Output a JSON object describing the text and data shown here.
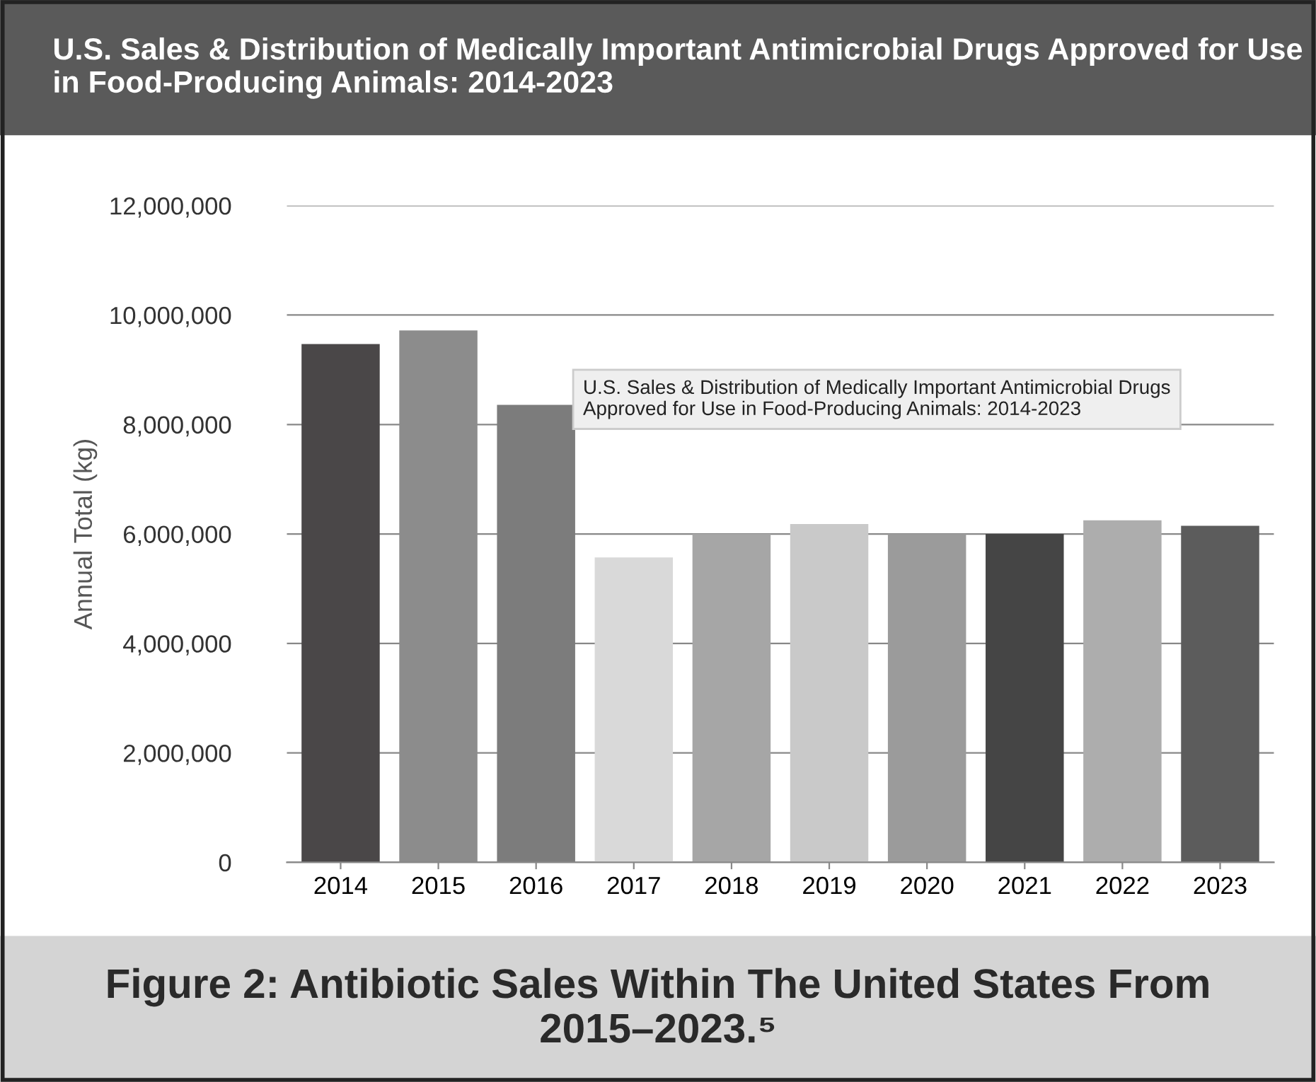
{
  "chart_data": {
    "type": "bar",
    "title": "U.S. Sales & Distribution of Medically Important Antimicrobial Drugs Approved for Use in Food-Producing Animals: 2014-2023",
    "ylabel": "Annual Total (kg)",
    "categories": [
      "2014",
      "2015",
      "2016",
      "2017",
      "2018",
      "2019",
      "2020",
      "2021",
      "2022",
      "2023"
    ],
    "values": [
      9470000,
      9720000,
      8360000,
      5570000,
      6000000,
      6180000,
      6000000,
      6000000,
      6250000,
      6150000
    ],
    "colors": [
      "#4a4748",
      "#8c8c8c",
      "#7c7c7c",
      "#d9d9d9",
      "#a6a6a6",
      "#c9c9c9",
      "#9b9b9b",
      "#454545",
      "#adadad",
      "#5c5c5c"
    ],
    "ylim": [
      0,
      12000000
    ],
    "yticks": [
      {
        "value": 0,
        "label": "0"
      },
      {
        "value": 2000000,
        "label": "2,000,000"
      },
      {
        "value": 4000000,
        "label": "4,000,000"
      },
      {
        "value": 6000000,
        "label": "6,000,000"
      },
      {
        "value": 8000000,
        "label": "8,000,000"
      },
      {
        "value": 10000000,
        "label": "10,000,000"
      },
      {
        "value": 12000000,
        "label": "12,000,000"
      }
    ],
    "grid": "y",
    "annotations": [
      "U.S. Sales & Distribution of Medically Important Antimicrobial Drugs Approved for Use in Food-Producing Animals: 2014-2023",
      "Figure 2: Antibiotic Sales Within The United States From 2015–2023.⁵"
    ]
  }
}
